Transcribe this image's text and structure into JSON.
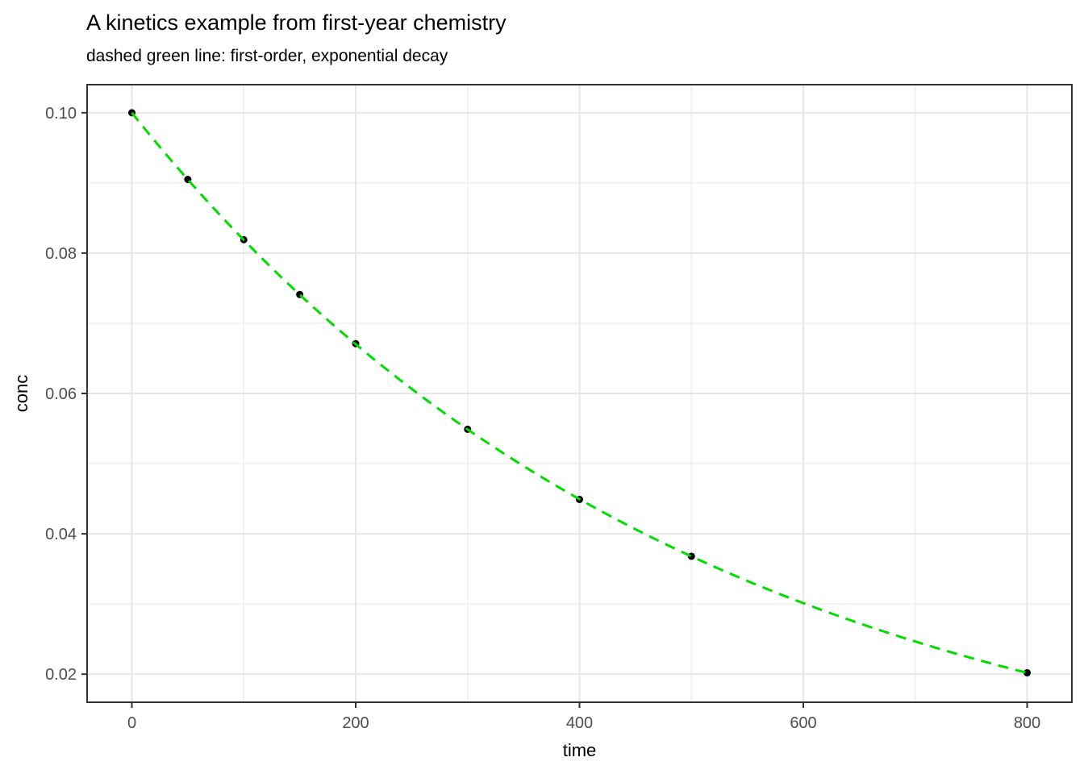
{
  "chart_data": {
    "type": "scatter",
    "title": "A kinetics example from first-year chemistry",
    "subtitle": "dashed green line: first-order, exponential decay",
    "xlabel": "time",
    "ylabel": "conc",
    "x": [
      0,
      50,
      100,
      150,
      200,
      300,
      400,
      500,
      800
    ],
    "y": [
      0.1,
      0.0905,
      0.0819,
      0.0741,
      0.0671,
      0.0549,
      0.0449,
      0.0368,
      0.0202
    ],
    "fit_line": {
      "description": "first-order exponential decay",
      "formula": "conc = 0.1 * exp(-0.002 * time)",
      "c0": 0.1,
      "k": 0.002,
      "t_start": 0,
      "t_end": 800,
      "style": "dashed",
      "color": "#00DD00"
    },
    "x_ticks": [
      0,
      200,
      400,
      600,
      800
    ],
    "x_tick_labels": [
      "0",
      "200",
      "400",
      "600",
      "800"
    ],
    "x_minor_ticks": [
      100,
      300,
      500,
      700
    ],
    "y_ticks": [
      0.02,
      0.04,
      0.06,
      0.08,
      0.1
    ],
    "y_tick_labels": [
      "0.02",
      "0.04",
      "0.06",
      "0.08",
      "0.10"
    ],
    "y_minor_ticks": [
      0.03,
      0.05,
      0.07,
      0.09
    ],
    "xlim": [
      -40,
      840
    ],
    "ylim": [
      0.016,
      0.104
    ],
    "grid": true,
    "legend": "none",
    "point_color": "#000000",
    "theme": {
      "background": "#FFFFFF",
      "grid_major_color": "#E7E7E7",
      "grid_minor_color": "#EFEFEF",
      "panel_border_color": "#333333",
      "tick_mark_color": "#333333",
      "tick_label_color": "#4D4D4D",
      "axis_title_color": "#000000",
      "title_color": "#000000"
    }
  }
}
